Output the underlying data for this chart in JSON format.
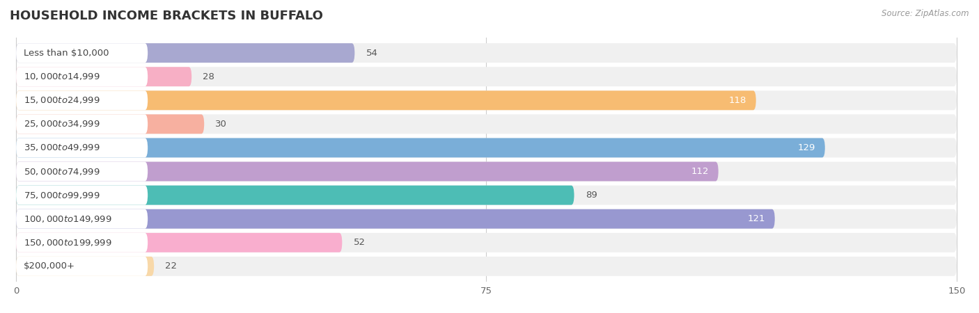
{
  "title": "HOUSEHOLD INCOME BRACKETS IN BUFFALO",
  "source": "Source: ZipAtlas.com",
  "categories": [
    "Less than $10,000",
    "$10,000 to $14,999",
    "$15,000 to $24,999",
    "$25,000 to $34,999",
    "$35,000 to $49,999",
    "$50,000 to $74,999",
    "$75,000 to $99,999",
    "$100,000 to $149,999",
    "$150,000 to $199,999",
    "$200,000+"
  ],
  "values": [
    54,
    28,
    118,
    30,
    129,
    112,
    89,
    121,
    52,
    22
  ],
  "bar_colors": [
    "#a8a8d0",
    "#f7afc5",
    "#f7bc72",
    "#f7b0a0",
    "#7aaed8",
    "#c09ece",
    "#4dbdb5",
    "#9898d0",
    "#f9aece",
    "#f8d8a8"
  ],
  "xlim_data": [
    0,
    150
  ],
  "xticks": [
    0,
    75,
    150
  ],
  "bg_color": "#ffffff",
  "row_bg_color": "#f0f0f0",
  "label_bg_color": "#ffffff",
  "title_fontsize": 13,
  "label_fontsize": 9.5,
  "value_fontsize": 9.5
}
